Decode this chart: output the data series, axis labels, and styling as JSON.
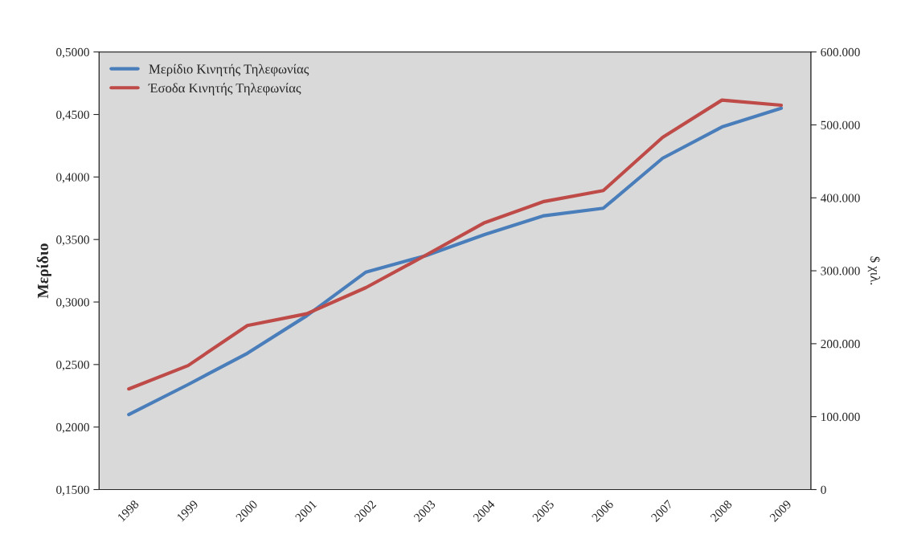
{
  "chart_data": {
    "type": "line",
    "ylabel": "Μερίδιο",
    "y2label": "$ χιλ.",
    "categories": [
      "1998",
      "1999",
      "2000",
      "2001",
      "2002",
      "2003",
      "2004",
      "2005",
      "2006",
      "2007",
      "2008",
      "2009"
    ],
    "series": [
      {
        "name": "Μερίδιο Κινητής Τηλεφωνίας",
        "color": "#4a7ebb",
        "values": [
          0.21,
          0.234,
          0.259,
          0.289,
          0.324,
          0.337,
          0.354,
          0.369,
          0.375,
          0.415,
          0.44,
          0.455
        ]
      },
      {
        "name": "Έσοδα Κινητής Τηλεφωνίας",
        "color": "#be4b48",
        "axis": "y2",
        "values": [
          138000,
          170000,
          225000,
          241000,
          277000,
          321000,
          366000,
          395000,
          410000,
          483000,
          534000,
          527000
        ]
      }
    ],
    "ylim": [
      0.15,
      0.5
    ],
    "yticks": [
      {
        "value": 0.15,
        "label": "0,1500"
      },
      {
        "value": 0.2,
        "label": "0,2000"
      },
      {
        "value": 0.25,
        "label": "0,2500"
      },
      {
        "value": 0.3,
        "label": "0,3000"
      },
      {
        "value": 0.35,
        "label": "0,3500"
      },
      {
        "value": 0.4,
        "label": "0,4000"
      },
      {
        "value": 0.45,
        "label": "0,4500"
      },
      {
        "value": 0.5,
        "label": "0,5000"
      }
    ],
    "y2lim": [
      0,
      600000
    ],
    "y2ticks": [
      {
        "value": 0,
        "label": "0"
      },
      {
        "value": 100000,
        "label": "100.000"
      },
      {
        "value": 200000,
        "label": "200.000"
      },
      {
        "value": 300000,
        "label": "300.000"
      },
      {
        "value": 400000,
        "label": "400.000"
      },
      {
        "value": 500000,
        "label": "500.000"
      },
      {
        "value": 600000,
        "label": "600.000"
      }
    ],
    "legend": "top left",
    "grid": false,
    "marker": "none",
    "line_style": "solid"
  }
}
